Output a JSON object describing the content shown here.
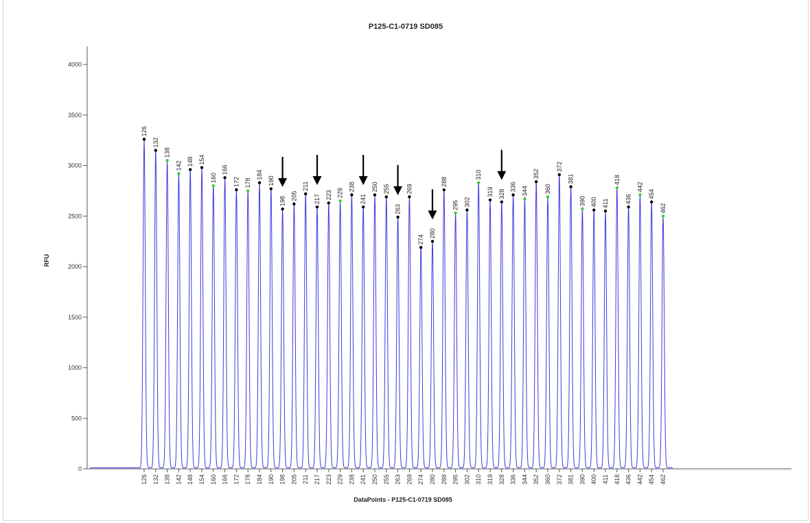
{
  "chart_data": {
    "type": "line",
    "title": "P125-C1-0719 SD085",
    "xlabel": "DataPoints - P125-C1-0719 SD085",
    "ylabel": "RFU",
    "ylim": [
      0,
      4200
    ],
    "yticks": [
      0,
      500,
      1000,
      1500,
      2000,
      2500,
      3000,
      3500,
      4000
    ],
    "grid": false,
    "legend": "none",
    "series": [
      {
        "color": "#3a3ae0",
        "peaks": [
          {
            "label": "126",
            "rfu": 3260,
            "marker": "black"
          },
          {
            "label": "132",
            "rfu": 3150,
            "marker": "black"
          },
          {
            "label": "138",
            "rfu": 3050,
            "marker": "green"
          },
          {
            "label": "142",
            "rfu": 2920,
            "marker": "green"
          },
          {
            "label": "148",
            "rfu": 2960,
            "marker": "black"
          },
          {
            "label": "154",
            "rfu": 2980,
            "marker": "black"
          },
          {
            "label": "160",
            "rfu": 2800,
            "marker": "green"
          },
          {
            "label": "166",
            "rfu": 2880,
            "marker": "black"
          },
          {
            "label": "172",
            "rfu": 2760,
            "marker": "black"
          },
          {
            "label": "178",
            "rfu": 2750,
            "marker": "green"
          },
          {
            "label": "184",
            "rfu": 2830,
            "marker": "black"
          },
          {
            "label": "190",
            "rfu": 2770,
            "marker": "black"
          },
          {
            "label": "198",
            "rfu": 2570,
            "marker": "black"
          },
          {
            "label": "205",
            "rfu": 2620,
            "marker": "black"
          },
          {
            "label": "211",
            "rfu": 2720,
            "marker": "black"
          },
          {
            "label": "217",
            "rfu": 2590,
            "marker": "black"
          },
          {
            "label": "223",
            "rfu": 2630,
            "marker": "black"
          },
          {
            "label": "229",
            "rfu": 2650,
            "marker": "green"
          },
          {
            "label": "238",
            "rfu": 2710,
            "marker": "black"
          },
          {
            "label": "241",
            "rfu": 2590,
            "marker": "black"
          },
          {
            "label": "250",
            "rfu": 2710,
            "marker": "black"
          },
          {
            "label": "255",
            "rfu": 2690,
            "marker": "black"
          },
          {
            "label": "263",
            "rfu": 2490,
            "marker": "black"
          },
          {
            "label": "269",
            "rfu": 2690,
            "marker": "black"
          },
          {
            "label": "274",
            "rfu": 2190,
            "marker": "black"
          },
          {
            "label": "280",
            "rfu": 2250,
            "marker": "black"
          },
          {
            "label": "288",
            "rfu": 2760,
            "marker": "black"
          },
          {
            "label": "295",
            "rfu": 2530,
            "marker": "green"
          },
          {
            "label": "302",
            "rfu": 2560,
            "marker": "black"
          },
          {
            "label": "310",
            "rfu": 2830,
            "marker": "green"
          },
          {
            "label": "319",
            "rfu": 2660,
            "marker": "black"
          },
          {
            "label": "328",
            "rfu": 2640,
            "marker": "black"
          },
          {
            "label": "336",
            "rfu": 2710,
            "marker": "black"
          },
          {
            "label": "344",
            "rfu": 2670,
            "marker": "green"
          },
          {
            "label": "352",
            "rfu": 2840,
            "marker": "black"
          },
          {
            "label": "360",
            "rfu": 2690,
            "marker": "green"
          },
          {
            "label": "372",
            "rfu": 2910,
            "marker": "black"
          },
          {
            "label": "381",
            "rfu": 2790,
            "marker": "black"
          },
          {
            "label": "390",
            "rfu": 2570,
            "marker": "green"
          },
          {
            "label": "400",
            "rfu": 2560,
            "marker": "black"
          },
          {
            "label": "411",
            "rfu": 2550,
            "marker": "black"
          },
          {
            "label": "418",
            "rfu": 2780,
            "marker": "green"
          },
          {
            "label": "436",
            "rfu": 2590,
            "marker": "black"
          },
          {
            "label": "442",
            "rfu": 2710,
            "marker": "green"
          },
          {
            "label": "454",
            "rfu": 2640,
            "marker": "black"
          },
          {
            "label": "462",
            "rfu": 2500,
            "marker": "green"
          }
        ]
      }
    ],
    "annotations": {
      "type": "down-arrow",
      "color": "#000000",
      "near_peaks": [
        "198",
        "217",
        "241",
        "263",
        "280",
        "328"
      ]
    }
  }
}
